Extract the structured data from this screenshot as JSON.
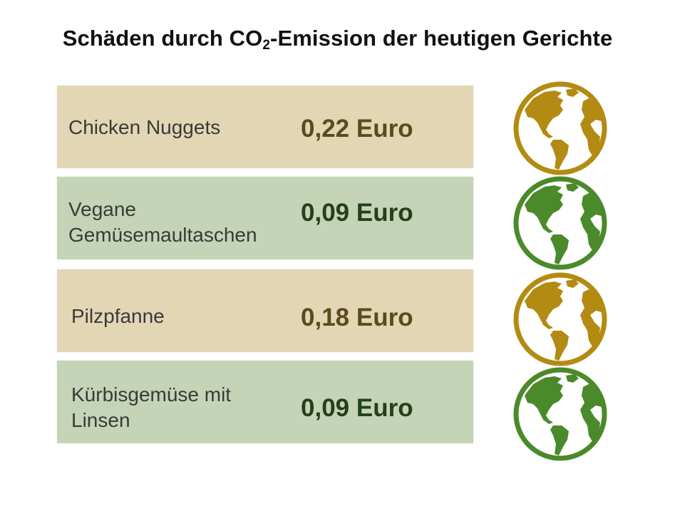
{
  "title": {
    "main": "Schäden durch CO",
    "subscript": "2",
    "rest": "-Emission der heutigen Gerichte"
  },
  "colors": {
    "tan_bg": "#e3d6b5",
    "green_bg": "#c5d4b6",
    "tan_price": "#5c4a1c",
    "green_price": "#24401c",
    "globe_gold": "#b38b12",
    "globe_green": "#4a8a2a"
  },
  "rows": [
    {
      "dish_line1": "Chicken Nuggets",
      "dish_line2": "",
      "price": "0,22 Euro",
      "globe_icon": "globe-americas-icon",
      "theme": "tan"
    },
    {
      "dish_line1": "Vegane",
      "dish_line2": "Gemüsemaultaschen",
      "price": "0,09 Euro",
      "globe_icon": "globe-americas-icon",
      "theme": "green"
    },
    {
      "dish_line1": "Pilzpfanne",
      "dish_line2": "",
      "price": "0,18 Euro",
      "globe_icon": "globe-americas-icon",
      "theme": "tan"
    },
    {
      "dish_line1": "Kürbisgemüse mit",
      "dish_line2": "Linsen",
      "price": "0,09 Euro",
      "globe_icon": "globe-americas-icon",
      "theme": "green"
    }
  ]
}
